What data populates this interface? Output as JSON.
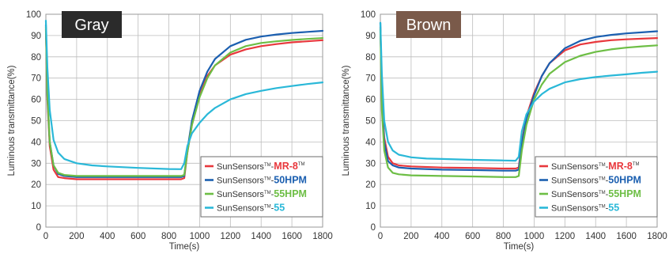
{
  "chart_data": [
    {
      "type": "line",
      "title": "Gray",
      "badge_color": "#2b2b2b",
      "xlabel": "Time(s)",
      "ylabel": "Luminous transmittance(%)",
      "xlim": [
        0,
        1800
      ],
      "ylim": [
        0,
        100
      ],
      "xticks": [
        0,
        200,
        400,
        600,
        800,
        1000,
        1200,
        1400,
        1600,
        1800
      ],
      "yticks": [
        0,
        10,
        20,
        30,
        40,
        50,
        60,
        70,
        80,
        90,
        100
      ],
      "grid": true,
      "legend_position": "bottom-right",
      "series": [
        {
          "prefix": "SunSensors",
          "mark": "TM",
          "model": "MR-8",
          "model_mark": "TM",
          "color": "#e8383d",
          "x": [
            0,
            10,
            25,
            50,
            80,
            120,
            200,
            400,
            600,
            800,
            880,
            900,
            920,
            950,
            1000,
            1050,
            1100,
            1200,
            1300,
            1400,
            1500,
            1600,
            1700,
            1800
          ],
          "y": [
            93,
            60,
            38,
            27,
            23.5,
            23,
            22.5,
            22.5,
            22.5,
            22.5,
            22.5,
            23,
            35,
            48,
            62,
            71,
            76,
            81,
            83.5,
            85,
            86,
            86.8,
            87.3,
            87.8
          ]
        },
        {
          "prefix": "SunSensors",
          "mark": "TM",
          "model": "50HPM",
          "model_mark": "",
          "color": "#1b5fb0",
          "x": [
            0,
            10,
            25,
            50,
            80,
            120,
            200,
            400,
            600,
            800,
            880,
            900,
            920,
            950,
            1000,
            1050,
            1100,
            1200,
            1300,
            1400,
            1500,
            1600,
            1700,
            1800
          ],
          "y": [
            95,
            62,
            40,
            29,
            25,
            24,
            23.5,
            23.5,
            23.5,
            23.5,
            23.5,
            24,
            36,
            50,
            64,
            73,
            79,
            85,
            88,
            89.5,
            90.5,
            91.2,
            91.7,
            92.2
          ]
        },
        {
          "prefix": "SunSensors",
          "mark": "TM",
          "model": "55HPM",
          "model_mark": "",
          "color": "#6dbe45",
          "x": [
            0,
            10,
            25,
            50,
            80,
            120,
            200,
            400,
            600,
            800,
            880,
            900,
            920,
            950,
            1000,
            1050,
            1100,
            1200,
            1300,
            1400,
            1500,
            1600,
            1700,
            1800
          ],
          "y": [
            94,
            63,
            40,
            29,
            25.5,
            24.5,
            24,
            24,
            24,
            24,
            24,
            24.5,
            35,
            48,
            61,
            70,
            76,
            82,
            85,
            86.5,
            87.3,
            87.9,
            88.4,
            88.8
          ]
        },
        {
          "prefix": "SunSensors",
          "mark": "TM",
          "model": "55",
          "model_mark": "",
          "color": "#2ab8d8",
          "x": [
            0,
            10,
            25,
            50,
            80,
            120,
            200,
            300,
            400,
            600,
            800,
            880,
            900,
            920,
            950,
            1000,
            1050,
            1100,
            1200,
            1300,
            1400,
            1500,
            1600,
            1700,
            1800
          ],
          "y": [
            97,
            75,
            55,
            41,
            35,
            32,
            30,
            29,
            28.5,
            27.8,
            27.3,
            27.2,
            30,
            38,
            44,
            49,
            53,
            56,
            60,
            62.5,
            64,
            65.3,
            66.3,
            67.2,
            68
          ]
        }
      ]
    },
    {
      "type": "line",
      "title": "Brown",
      "badge_color": "#7a5a4a",
      "xlabel": "Time(s)",
      "ylabel": "Luminous transmittance(%)",
      "xlim": [
        0,
        1800
      ],
      "ylim": [
        0,
        100
      ],
      "xticks": [
        0,
        200,
        400,
        600,
        800,
        1000,
        1200,
        1400,
        1600,
        1800
      ],
      "yticks": [
        0,
        10,
        20,
        30,
        40,
        50,
        60,
        70,
        80,
        90,
        100
      ],
      "grid": true,
      "legend_position": "bottom-right",
      "series": [
        {
          "prefix": "SunSensors",
          "mark": "TM",
          "model": "MR-8",
          "model_mark": "TM",
          "color": "#e8383d",
          "x": [
            0,
            10,
            25,
            50,
            80,
            120,
            200,
            400,
            600,
            800,
            880,
            900,
            920,
            950,
            1000,
            1050,
            1100,
            1200,
            1300,
            1400,
            1500,
            1600,
            1700,
            1800
          ],
          "y": [
            94,
            62,
            42,
            33,
            30,
            29,
            28.5,
            28,
            27.8,
            27.5,
            27.5,
            28,
            40,
            52,
            63,
            71,
            77,
            83,
            85.8,
            87,
            87.8,
            88.2,
            88.5,
            88.8
          ]
        },
        {
          "prefix": "SunSensors",
          "mark": "TM",
          "model": "50HPM",
          "model_mark": "",
          "color": "#1b5fb0",
          "x": [
            0,
            10,
            25,
            50,
            80,
            120,
            200,
            400,
            600,
            800,
            880,
            900,
            920,
            950,
            1000,
            1050,
            1100,
            1200,
            1300,
            1400,
            1500,
            1600,
            1700,
            1800
          ],
          "y": [
            96,
            60,
            40,
            31,
            29,
            28,
            27.5,
            27,
            26.8,
            26.5,
            26.5,
            27,
            39,
            51,
            62,
            71,
            77,
            84,
            87.5,
            89.3,
            90.3,
            91,
            91.5,
            92
          ]
        },
        {
          "prefix": "SunSensors",
          "mark": "TM",
          "model": "55HPM",
          "model_mark": "",
          "color": "#6dbe45",
          "x": [
            0,
            10,
            25,
            50,
            80,
            120,
            200,
            400,
            600,
            800,
            880,
            900,
            920,
            950,
            1000,
            1050,
            1100,
            1200,
            1300,
            1400,
            1500,
            1600,
            1700,
            1800
          ],
          "y": [
            93,
            55,
            36,
            28,
            25.5,
            24.8,
            24.3,
            24,
            23.8,
            23.5,
            23.5,
            24,
            36,
            48,
            60,
            67,
            72,
            77.5,
            80.5,
            82.3,
            83.5,
            84.3,
            84.9,
            85.4
          ]
        },
        {
          "prefix": "SunSensors",
          "mark": "TM",
          "model": "55",
          "model_mark": "",
          "color": "#2ab8d8",
          "x": [
            0,
            10,
            25,
            50,
            80,
            120,
            200,
            300,
            400,
            600,
            800,
            880,
            900,
            920,
            950,
            1000,
            1050,
            1100,
            1200,
            1300,
            1400,
            1500,
            1600,
            1700,
            1800
          ],
          "y": [
            96,
            72,
            50,
            40,
            36,
            34,
            32.8,
            32.2,
            32,
            31.6,
            31.3,
            31.2,
            33,
            45,
            53,
            59,
            62.5,
            65,
            68,
            69.5,
            70.5,
            71.2,
            71.8,
            72.5,
            73
          ]
        }
      ]
    }
  ]
}
